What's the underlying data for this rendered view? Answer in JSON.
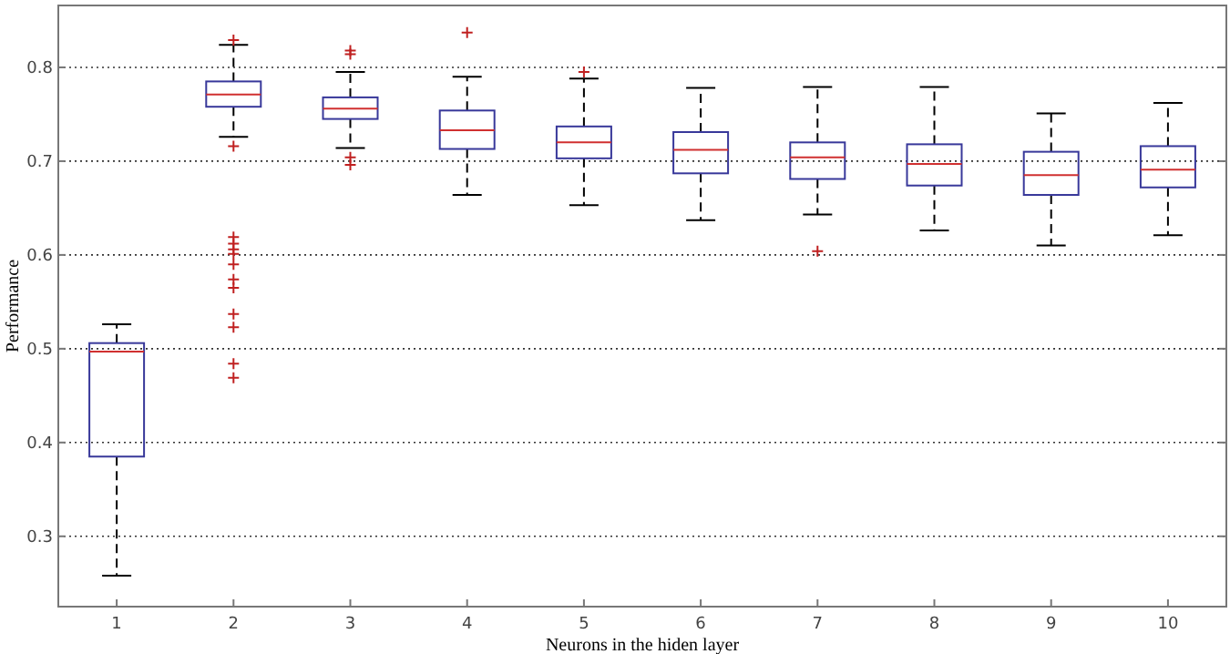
{
  "chart_data": {
    "type": "box",
    "xlabel": "Neurons in the hiden layer",
    "ylabel": "Performance",
    "categories": [
      "1",
      "2",
      "3",
      "4",
      "5",
      "6",
      "7",
      "8",
      "9",
      "10"
    ],
    "ylim": [
      0.225,
      0.866
    ],
    "yticks": [
      0.3,
      0.4,
      0.5,
      0.6,
      0.7,
      0.8
    ],
    "grid": "y",
    "series": [
      {
        "color": "#38389a",
        "boxes": [
          {
            "low": 0.258,
            "q1": 0.385,
            "median": 0.497,
            "q3": 0.506,
            "high": 0.526
          },
          {
            "low": 0.726,
            "q1": 0.758,
            "median": 0.771,
            "q3": 0.785,
            "high": 0.824,
            "outliers": [
              0.829,
              0.716,
              0.619,
              0.612,
              0.606,
              0.601,
              0.59,
              0.574,
              0.565,
              0.537,
              0.523,
              0.484,
              0.469
            ]
          },
          {
            "low": 0.714,
            "q1": 0.745,
            "median": 0.756,
            "q3": 0.768,
            "high": 0.795,
            "outliers": [
              0.818,
              0.814,
              0.704,
              0.696
            ]
          },
          {
            "low": 0.664,
            "q1": 0.713,
            "median": 0.733,
            "q3": 0.754,
            "high": 0.79,
            "outliers": [
              0.837
            ]
          },
          {
            "low": 0.653,
            "q1": 0.703,
            "median": 0.72,
            "q3": 0.737,
            "high": 0.788,
            "outliers": [
              0.795
            ]
          },
          {
            "low": 0.637,
            "q1": 0.687,
            "median": 0.712,
            "q3": 0.731,
            "high": 0.778
          },
          {
            "low": 0.643,
            "q1": 0.681,
            "median": 0.704,
            "q3": 0.72,
            "high": 0.779,
            "outliers": [
              0.604
            ]
          },
          {
            "low": 0.626,
            "q1": 0.674,
            "median": 0.697,
            "q3": 0.718,
            "high": 0.779
          },
          {
            "low": 0.61,
            "q1": 0.664,
            "median": 0.685,
            "q3": 0.71,
            "high": 0.751
          },
          {
            "low": 0.621,
            "q1": 0.672,
            "median": 0.691,
            "q3": 0.716,
            "high": 0.762
          }
        ]
      }
    ]
  }
}
